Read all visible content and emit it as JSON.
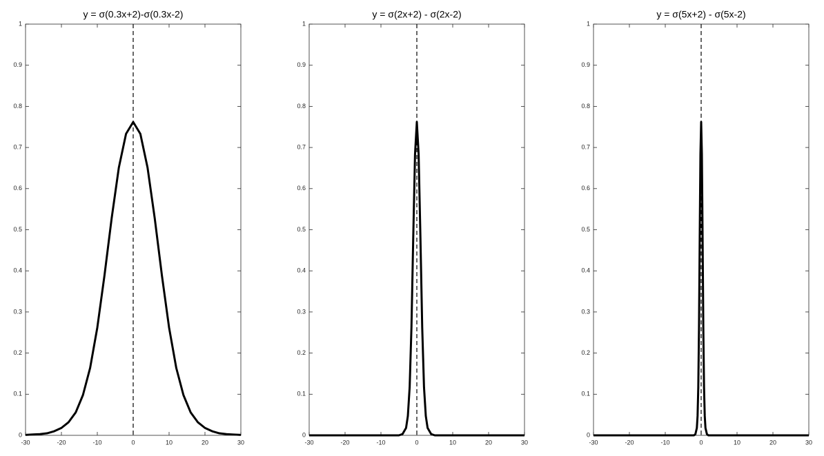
{
  "chart_data": [
    {
      "type": "line",
      "title": "y = σ(0.3x+2)-σ(0.3x-2)",
      "x": [
        -30,
        -28,
        -26,
        -24,
        -22,
        -20,
        -18,
        -16,
        -14,
        -12,
        -10,
        -8,
        -6,
        -4,
        -2,
        0,
        2,
        4,
        6,
        8,
        10,
        12,
        14,
        16,
        18,
        20,
        22,
        24,
        26,
        28,
        30
      ],
      "values": [
        0.001,
        0.002,
        0.003,
        0.005,
        0.01,
        0.018,
        0.032,
        0.056,
        0.098,
        0.164,
        0.262,
        0.389,
        0.528,
        0.651,
        0.733,
        0.762,
        0.733,
        0.651,
        0.528,
        0.389,
        0.262,
        0.164,
        0.098,
        0.056,
        0.032,
        0.018,
        0.01,
        0.005,
        0.003,
        0.002,
        0.001
      ],
      "color": "#000000",
      "vline": 0,
      "xlim": [
        -30,
        30
      ],
      "ylim": [
        0,
        1
      ],
      "xticks": [
        -30,
        -20,
        -10,
        0,
        10,
        20,
        30
      ],
      "yticks": [
        0,
        0.1,
        0.2,
        0.3,
        0.4,
        0.5,
        0.6,
        0.7,
        0.8,
        0.9,
        1
      ]
    },
    {
      "type": "line",
      "title": "y = σ(2x+2) - σ(2x-2)",
      "x": [
        -30,
        -10,
        -5,
        -4,
        -3,
        -2.5,
        -2,
        -1.5,
        -1,
        -0.5,
        0,
        0.5,
        1,
        1.5,
        2,
        2.5,
        3,
        4,
        5,
        10,
        30
      ],
      "values": [
        0,
        0,
        0,
        0.003,
        0.018,
        0.047,
        0.117,
        0.262,
        0.482,
        0.684,
        0.762,
        0.684,
        0.482,
        0.262,
        0.117,
        0.047,
        0.018,
        0.003,
        0,
        0,
        0
      ],
      "color": "#000000",
      "vline": 0,
      "xlim": [
        -30,
        30
      ],
      "ylim": [
        0,
        1
      ],
      "xticks": [
        -30,
        -20,
        -10,
        0,
        10,
        20,
        30
      ],
      "yticks": [
        0,
        0.1,
        0.2,
        0.3,
        0.4,
        0.5,
        0.6,
        0.7,
        0.8,
        0.9,
        1
      ]
    },
    {
      "type": "line",
      "title": "y = σ(5x+2) - σ(5x-2)",
      "x": [
        -30,
        -5,
        -2,
        -1.6,
        -1.2,
        -1,
        -0.8,
        -0.6,
        -0.4,
        -0.2,
        0,
        0.2,
        0.4,
        0.6,
        0.8,
        1,
        1.2,
        1.6,
        2,
        5,
        30
      ],
      "values": [
        0,
        0,
        0,
        0.003,
        0.018,
        0.047,
        0.117,
        0.262,
        0.482,
        0.684,
        0.762,
        0.684,
        0.482,
        0.262,
        0.117,
        0.047,
        0.018,
        0.003,
        0,
        0,
        0
      ],
      "color": "#000000",
      "vline": 0,
      "xlim": [
        -30,
        30
      ],
      "ylim": [
        0,
        1
      ],
      "xticks": [
        -30,
        -20,
        -10,
        0,
        10,
        20,
        30
      ],
      "yticks": [
        0,
        0.1,
        0.2,
        0.3,
        0.4,
        0.5,
        0.6,
        0.7,
        0.8,
        0.9,
        1
      ]
    }
  ]
}
